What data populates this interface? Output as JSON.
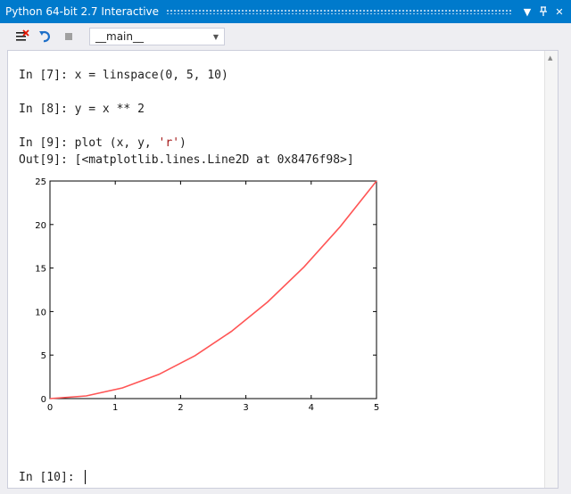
{
  "window": {
    "title": "Python 64-bit 2.7 Interactive",
    "buttons": [
      "dropdown-icon",
      "pin-icon",
      "close-icon"
    ]
  },
  "toolbar": {
    "scope_value": "__main__",
    "icons": [
      "clear-icon",
      "reset-icon",
      "stop-icon"
    ]
  },
  "console": {
    "lines": [
      {
        "prompt": "In [7]: ",
        "code": "x = linspace(0, 5, 10)"
      },
      {
        "prompt": "In [8]: ",
        "code": "y = x ** 2"
      },
      {
        "prompt": "In [9]: ",
        "code_pre": "plot (x, y, ",
        "code_str": "'r'",
        "code_post": ")"
      },
      {
        "prompt": "Out[9]: ",
        "code": "[<matplotlib.lines.Line2D at 0x8476f98>]"
      }
    ],
    "input_prompt": "In [10]: "
  },
  "chart_data": {
    "type": "line",
    "x": [
      0,
      0.5556,
      1.1111,
      1.6667,
      2.2222,
      2.7778,
      3.3333,
      3.8889,
      4.4444,
      5
    ],
    "series": [
      {
        "values": [
          0,
          0.3086,
          1.2346,
          2.7778,
          4.9383,
          7.716,
          11.1111,
          15.1235,
          19.7531,
          25
        ],
        "color": "#ff5555"
      }
    ],
    "xlim": [
      0,
      5
    ],
    "ylim": [
      0,
      25
    ],
    "xticks": [
      "0",
      "1",
      "2",
      "3",
      "4",
      "5"
    ],
    "yticks": [
      "0",
      "5",
      "10",
      "15",
      "20",
      "25"
    ],
    "title": "",
    "xlabel": "",
    "ylabel": "",
    "grid": false
  }
}
